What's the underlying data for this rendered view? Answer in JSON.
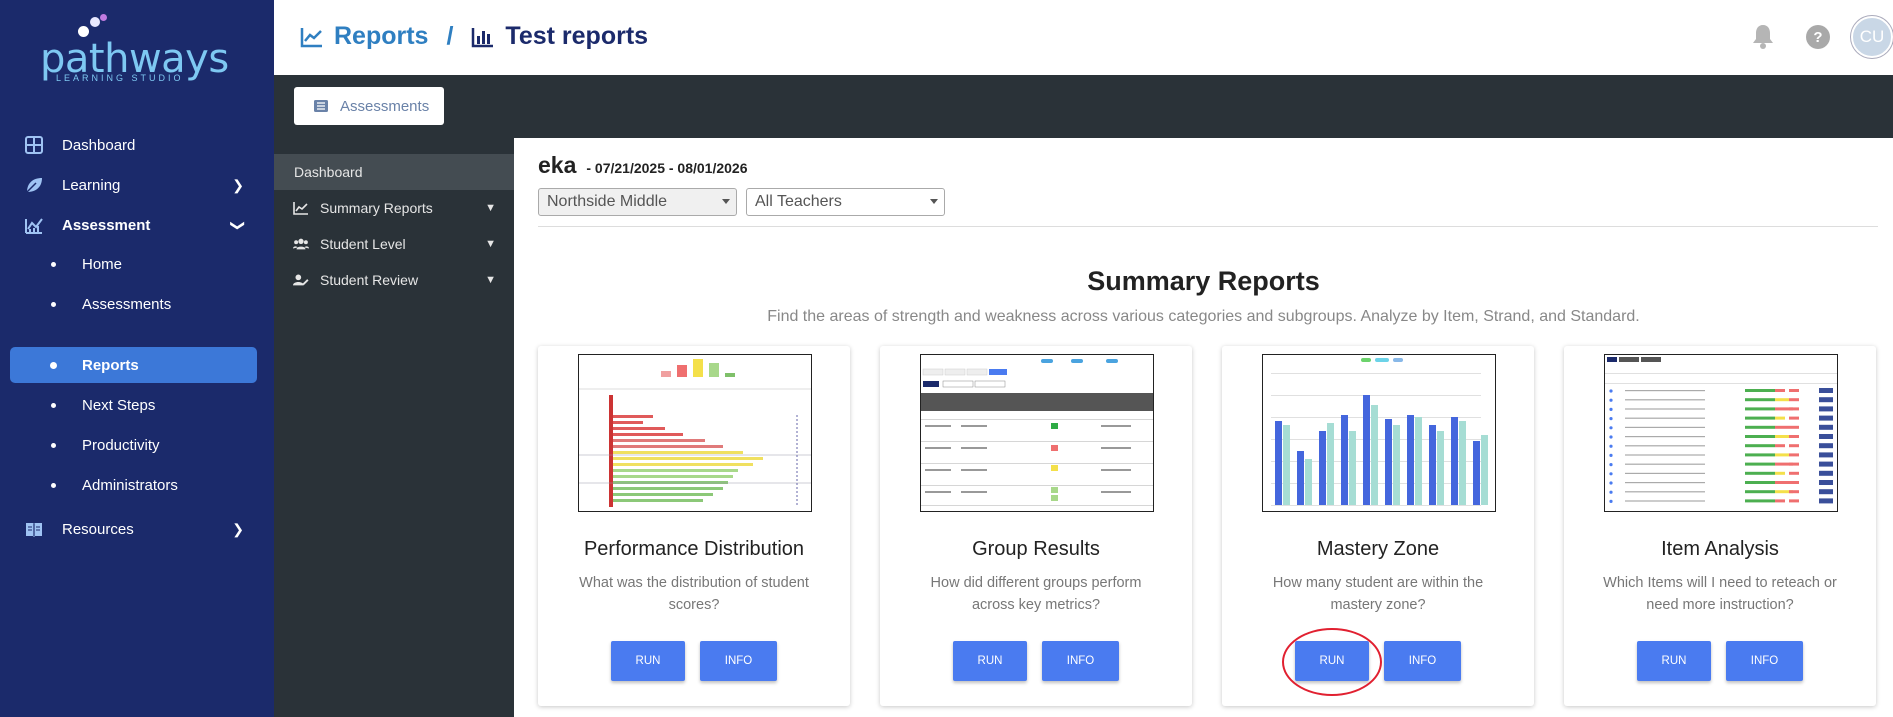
{
  "brand": {
    "name": "pathways",
    "tagline": "LEARNING STUDIO"
  },
  "sidebar": {
    "items": [
      {
        "label": "Dashboard",
        "icon": "dashboard-grid-icon"
      },
      {
        "label": "Learning",
        "icon": "leaf-icon"
      },
      {
        "label": "Assessment",
        "icon": "chart-line-icon"
      },
      {
        "label": "Resources",
        "icon": "book-icon"
      }
    ],
    "sub_items": [
      {
        "label": "Home"
      },
      {
        "label": "Assessments"
      },
      {
        "label": "Reports",
        "active": true
      },
      {
        "label": "Next Steps"
      },
      {
        "label": "Productivity"
      },
      {
        "label": "Administrators"
      }
    ]
  },
  "header": {
    "breadcrumb_root": "Reports",
    "separator": "/",
    "breadcrumb_current": "Test reports",
    "avatar_initials": "CU"
  },
  "toolbar": {
    "assessments_label": "Assessments"
  },
  "subnav": {
    "dashboard": "Dashboard",
    "items": [
      {
        "label": "Summary Reports",
        "icon": "chart-area-icon"
      },
      {
        "label": "Student Level",
        "icon": "users-icon"
      },
      {
        "label": "Student Review",
        "icon": "user-edit-icon"
      }
    ]
  },
  "main": {
    "org_name": "eka",
    "date_range": "- 07/21/2025 - 08/01/2026",
    "school_select": "Northside Middle",
    "teacher_select": "All Teachers",
    "section_title": "Summary Reports",
    "section_subtitle": "Find the areas of strength and weakness across various categories and subgroups. Analyze by Item, Strand, and Standard."
  },
  "cards": [
    {
      "title": "Performance Distribution",
      "desc": "What was the distribution of student scores?",
      "run": "RUN",
      "info": "INFO"
    },
    {
      "title": "Group Results",
      "desc": "How did different groups perform across key metrics?",
      "run": "RUN",
      "info": "INFO"
    },
    {
      "title": "Mastery Zone",
      "desc": "How many student are within the mastery zone?",
      "run": "RUN",
      "info": "INFO"
    },
    {
      "title": "Item Analysis",
      "desc": "Which Items will I need to reteach or need more instruction?",
      "run": "RUN",
      "info": "INFO"
    }
  ],
  "colors": {
    "sidebar": "#1b2a6b",
    "accent": "#3c78d8",
    "button": "#4a7bf0",
    "dark_band": "#2a3238",
    "highlight_circle": "#e12030"
  }
}
